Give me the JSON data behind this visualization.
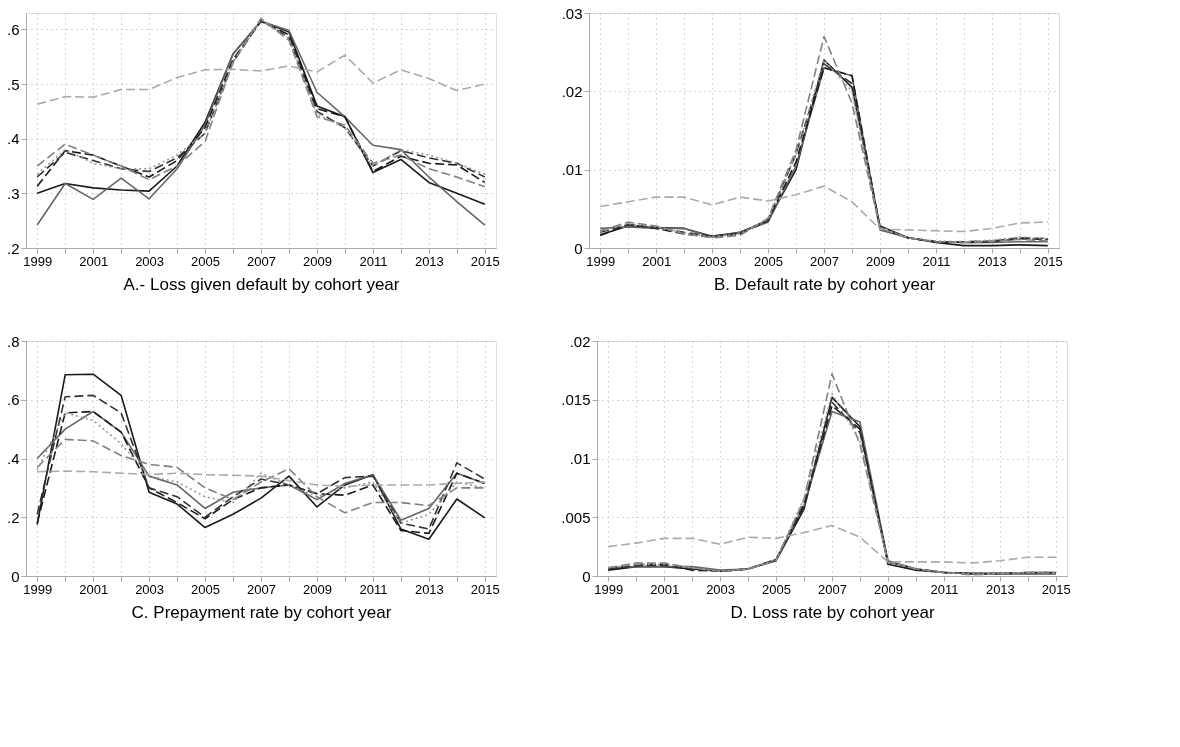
{
  "chart_data": [
    {
      "type": "line",
      "xlabel": "A.- Loss given default by cohort year",
      "x": [
        1999,
        2000,
        2001,
        2002,
        2003,
        2004,
        2005,
        2006,
        2007,
        2008,
        2009,
        2010,
        2011,
        2012,
        2013,
        2014,
        2015
      ],
      "xlim": [
        1998.6,
        2015.4
      ],
      "xticks": [
        1999,
        {
          "value": 2000,
          "label": null
        },
        2001,
        {
          "value": 2002,
          "label": null
        },
        2003,
        {
          "value": 2004,
          "label": null
        },
        2005,
        {
          "value": 2006,
          "label": null
        },
        2007,
        {
          "value": 2008,
          "label": null
        },
        2009,
        {
          "value": 2010,
          "label": null
        },
        2011,
        {
          "value": 2012,
          "label": null
        },
        2013,
        {
          "value": 2014,
          "label": null
        },
        2015
      ],
      "ylim": [
        0.2,
        0.63
      ],
      "yticks": [
        {
          "value": 0.2,
          "label": ".2"
        },
        {
          "value": 0.3,
          "label": ".3"
        },
        {
          "value": 0.4,
          "label": ".4"
        },
        {
          "value": 0.5,
          "label": ".5"
        },
        {
          "value": 0.6,
          "label": ".6"
        }
      ],
      "grid": true,
      "legend": false,
      "marker": "none",
      "series": [
        {
          "color": "#1a1a1a",
          "line_style": "solid",
          "values": [
            0.3,
            0.318,
            0.31,
            0.306,
            0.304,
            0.35,
            0.43,
            0.555,
            0.615,
            0.595,
            0.46,
            0.44,
            0.338,
            0.362,
            0.32,
            0.3,
            0.28
          ]
        },
        {
          "color": "#666666",
          "line_style": "solid",
          "values": [
            0.242,
            0.318,
            0.289,
            0.328,
            0.29,
            0.345,
            0.425,
            0.555,
            0.615,
            0.598,
            0.485,
            0.44,
            0.388,
            0.38,
            0.33,
            0.285,
            0.242
          ]
        },
        {
          "color": "#1a1a1a",
          "line_style": "dashed",
          "values": [
            0.313,
            0.378,
            0.37,
            0.35,
            0.33,
            0.36,
            0.42,
            0.545,
            0.615,
            0.59,
            0.455,
            0.44,
            0.34,
            0.368,
            0.355,
            0.352,
            0.32
          ]
        },
        {
          "color": "#333333",
          "line_style": "dashed",
          "values": [
            0.33,
            0.375,
            0.36,
            0.345,
            0.34,
            0.365,
            0.41,
            0.54,
            0.617,
            0.585,
            0.45,
            0.42,
            0.35,
            0.378,
            0.365,
            0.355,
            0.33
          ]
        },
        {
          "color": "#808080",
          "line_style": "dashed",
          "values": [
            0.35,
            0.39,
            0.37,
            0.35,
            0.325,
            0.35,
            0.395,
            0.54,
            0.62,
            0.58,
            0.44,
            0.425,
            0.355,
            0.37,
            0.345,
            0.33,
            0.312
          ]
        },
        {
          "color": "#999999",
          "line_style": "dotted",
          "values": [
            0.335,
            0.38,
            0.355,
            0.345,
            0.345,
            0.37,
            0.41,
            0.54,
            0.618,
            0.583,
            0.445,
            0.42,
            0.35,
            0.38,
            0.37,
            0.355,
            0.335
          ]
        },
        {
          "color": "#aaaaaa",
          "line_style": "dashed",
          "values": [
            0.463,
            0.477,
            0.476,
            0.49,
            0.49,
            0.512,
            0.526,
            0.527,
            0.524,
            0.533,
            0.522,
            0.553,
            0.502,
            0.526,
            0.51,
            0.488,
            0.5
          ]
        }
      ]
    },
    {
      "type": "line",
      "xlabel": "B. Default rate by cohort year",
      "x": [
        1999,
        2000,
        2001,
        2002,
        2003,
        2004,
        2005,
        2006,
        2007,
        2008,
        2009,
        2010,
        2011,
        2012,
        2013,
        2014,
        2015
      ],
      "xlim": [
        1998.6,
        2015.4
      ],
      "xticks": [
        1999,
        {
          "value": 2000,
          "label": null
        },
        2001,
        {
          "value": 2002,
          "label": null
        },
        2003,
        {
          "value": 2004,
          "label": null
        },
        2005,
        {
          "value": 2006,
          "label": null
        },
        2007,
        {
          "value": 2008,
          "label": null
        },
        2009,
        {
          "value": 2010,
          "label": null
        },
        2011,
        {
          "value": 2012,
          "label": null
        },
        2013,
        {
          "value": 2014,
          "label": null
        },
        2015
      ],
      "ylim": [
        0,
        0.03
      ],
      "yticks": [
        0,
        {
          "value": 0.01,
          "label": ".01"
        },
        {
          "value": 0.02,
          "label": ".02"
        },
        {
          "value": 0.03,
          "label": ".03"
        }
      ],
      "grid": true,
      "legend": false,
      "marker": "none",
      "series": [
        {
          "color": "#1a1a1a",
          "line_style": "solid",
          "values": [
            0.0017,
            0.0028,
            0.0026,
            0.0025,
            0.0015,
            0.002,
            0.0035,
            0.01,
            0.024,
            0.0205,
            0.0028,
            0.0013,
            0.0007,
            0.0003,
            0.0003,
            0.0004,
            0.0003
          ]
        },
        {
          "color": "#666666",
          "line_style": "solid",
          "values": [
            0.0025,
            0.0027,
            0.0025,
            0.0025,
            0.0014,
            0.002,
            0.0033,
            0.0105,
            0.023,
            0.022,
            0.0023,
            0.0013,
            0.0008,
            0.0007,
            0.0007,
            0.0008,
            0.0008
          ]
        },
        {
          "color": "#1a1a1a",
          "line_style": "dashed",
          "values": [
            0.0016,
            0.003,
            0.0025,
            0.0018,
            0.0014,
            0.0018,
            0.0035,
            0.011,
            0.023,
            0.022,
            0.0025,
            0.0013,
            0.0008,
            0.0007,
            0.0008,
            0.0012,
            0.0011
          ]
        },
        {
          "color": "#333333",
          "line_style": "dashed",
          "values": [
            0.002,
            0.003,
            0.0026,
            0.002,
            0.0015,
            0.0019,
            0.0036,
            0.012,
            0.0235,
            0.021,
            0.0027,
            0.0013,
            0.0008,
            0.0008,
            0.0009,
            0.0013,
            0.0012
          ]
        },
        {
          "color": "#808080",
          "line_style": "dashed",
          "values": [
            0.0022,
            0.0033,
            0.0028,
            0.0018,
            0.0013,
            0.0016,
            0.0038,
            0.0125,
            0.027,
            0.0185,
            0.0025,
            0.0013,
            0.0008,
            0.0007,
            0.0009,
            0.0011,
            0.0009
          ]
        },
        {
          "color": "#999999",
          "line_style": "dotted",
          "values": [
            0.0021,
            0.0031,
            0.0027,
            0.0019,
            0.0014,
            0.0018,
            0.0037,
            0.012,
            0.024,
            0.02,
            0.0026,
            0.0013,
            0.0009,
            0.0008,
            0.001,
            0.0014,
            0.0012
          ]
        },
        {
          "color": "#aaaaaa",
          "line_style": "dashed",
          "values": [
            0.0053,
            0.0059,
            0.0065,
            0.0065,
            0.0055,
            0.0065,
            0.006,
            0.0068,
            0.0079,
            0.0059,
            0.0024,
            0.0023,
            0.0022,
            0.0021,
            0.0025,
            0.0032,
            0.0033
          ]
        }
      ]
    },
    {
      "type": "line",
      "xlabel": "C. Prepayment rate by cohort year",
      "x": [
        1999,
        2000,
        2001,
        2002,
        2003,
        2004,
        2005,
        2006,
        2007,
        2008,
        2009,
        2010,
        2011,
        2012,
        2013,
        2014,
        2015
      ],
      "xlim": [
        1998.6,
        2015.4
      ],
      "xticks": [
        1999,
        {
          "value": 2000,
          "label": null
        },
        2001,
        {
          "value": 2002,
          "label": null
        },
        2003,
        {
          "value": 2004,
          "label": null
        },
        2005,
        {
          "value": 2006,
          "label": null
        },
        2007,
        {
          "value": 2008,
          "label": null
        },
        2009,
        {
          "value": 2010,
          "label": null
        },
        2011,
        {
          "value": 2012,
          "label": null
        },
        2013,
        {
          "value": 2014,
          "label": null
        },
        2015
      ],
      "ylim": [
        0,
        0.8
      ],
      "yticks": [
        0,
        {
          "value": 0.2,
          "label": ".2"
        },
        {
          "value": 0.4,
          "label": ".4"
        },
        {
          "value": 0.6,
          "label": ".6"
        },
        {
          "value": 0.8,
          "label": ".8"
        }
      ],
      "grid": true,
      "legend": false,
      "marker": "none",
      "series": [
        {
          "color": "#1a1a1a",
          "line_style": "solid",
          "values": [
            0.175,
            0.685,
            0.687,
            0.615,
            0.285,
            0.245,
            0.165,
            0.21,
            0.265,
            0.34,
            0.235,
            0.31,
            0.345,
            0.16,
            0.125,
            0.262,
            0.198
          ]
        },
        {
          "color": "#666666",
          "line_style": "solid",
          "values": [
            0.4,
            0.5,
            0.56,
            0.49,
            0.34,
            0.31,
            0.23,
            0.285,
            0.3,
            0.31,
            0.26,
            0.315,
            0.345,
            0.19,
            0.23,
            0.35,
            0.315
          ]
        },
        {
          "color": "#1a1a1a",
          "line_style": "dashed",
          "values": [
            0.18,
            0.555,
            0.56,
            0.49,
            0.3,
            0.25,
            0.195,
            0.26,
            0.3,
            0.31,
            0.28,
            0.275,
            0.31,
            0.155,
            0.145,
            0.35,
            0.315
          ]
        },
        {
          "color": "#333333",
          "line_style": "dashed",
          "values": [
            0.21,
            0.61,
            0.615,
            0.555,
            0.3,
            0.27,
            0.2,
            0.27,
            0.33,
            0.31,
            0.28,
            0.335,
            0.34,
            0.18,
            0.16,
            0.385,
            0.33
          ]
        },
        {
          "color": "#808080",
          "line_style": "dashed",
          "values": [
            0.37,
            0.465,
            0.46,
            0.41,
            0.38,
            0.37,
            0.3,
            0.26,
            0.32,
            0.365,
            0.27,
            0.215,
            0.25,
            0.25,
            0.24,
            0.3,
            0.3
          ]
        },
        {
          "color": "#999999",
          "line_style": "dotted",
          "values": [
            0.36,
            0.555,
            0.53,
            0.45,
            0.34,
            0.32,
            0.27,
            0.25,
            0.35,
            0.31,
            0.27,
            0.3,
            0.32,
            0.18,
            0.21,
            0.32,
            0.3
          ]
        },
        {
          "color": "#aaaaaa",
          "line_style": "dashed",
          "values": [
            0.355,
            0.357,
            0.355,
            0.35,
            0.345,
            0.35,
            0.345,
            0.343,
            0.34,
            0.325,
            0.31,
            0.305,
            0.31,
            0.31,
            0.31,
            0.315,
            0.32
          ]
        }
      ]
    },
    {
      "type": "line",
      "xlabel": "D. Loss rate by cohort year",
      "x": [
        1999,
        2000,
        2001,
        2002,
        2003,
        2004,
        2005,
        2006,
        2007,
        2008,
        2009,
        2010,
        2011,
        2012,
        2013,
        2014,
        2015
      ],
      "xlim": [
        1998.6,
        2015.4
      ],
      "xticks": [
        1999,
        {
          "value": 2000,
          "label": null
        },
        2001,
        {
          "value": 2002,
          "label": null
        },
        2003,
        {
          "value": 2004,
          "label": null
        },
        2005,
        {
          "value": 2006,
          "label": null
        },
        2007,
        {
          "value": 2008,
          "label": null
        },
        2009,
        {
          "value": 2010,
          "label": null
        },
        2011,
        {
          "value": 2012,
          "label": null
        },
        2013,
        {
          "value": 2014,
          "label": null
        },
        2015
      ],
      "ylim": [
        0,
        0.02
      ],
      "yticks": [
        0,
        {
          "value": 0.005,
          "label": ".005"
        },
        {
          "value": 0.01,
          "label": ".01"
        },
        {
          "value": 0.015,
          "label": ".015"
        },
        {
          "value": 0.02,
          "label": ".02"
        }
      ],
      "grid": true,
      "legend": false,
      "marker": "none",
      "series": [
        {
          "color": "#1a1a1a",
          "line_style": "solid",
          "values": [
            0.0005,
            0.0008,
            0.0008,
            0.0006,
            0.0004,
            0.0006,
            0.0013,
            0.0057,
            0.0152,
            0.0127,
            0.001,
            0.0005,
            0.0003,
            0.0002,
            0.0002,
            0.0002,
            0.0002
          ]
        },
        {
          "color": "#666666",
          "line_style": "solid",
          "values": [
            0.0007,
            0.0008,
            0.0008,
            0.0008,
            0.0005,
            0.0006,
            0.0014,
            0.006,
            0.014,
            0.0131,
            0.0013,
            0.0006,
            0.0003,
            0.0002,
            0.0002,
            0.0002,
            0.0002
          ]
        },
        {
          "color": "#1a1a1a",
          "line_style": "dashed",
          "values": [
            0.0006,
            0.0009,
            0.001,
            0.0005,
            0.0004,
            0.0006,
            0.0014,
            0.006,
            0.0145,
            0.0125,
            0.0012,
            0.0006,
            0.0003,
            0.0002,
            0.0002,
            0.0003,
            0.0003
          ]
        },
        {
          "color": "#333333",
          "line_style": "dashed",
          "values": [
            0.0006,
            0.0009,
            0.0009,
            0.0006,
            0.0004,
            0.0006,
            0.0014,
            0.0062,
            0.0148,
            0.0122,
            0.0012,
            0.0006,
            0.0003,
            0.0002,
            0.0002,
            0.0003,
            0.0003
          ]
        },
        {
          "color": "#808080",
          "line_style": "dashed",
          "values": [
            0.0007,
            0.0011,
            0.0011,
            0.0007,
            0.0004,
            0.0006,
            0.0013,
            0.0065,
            0.0172,
            0.0112,
            0.0012,
            0.0006,
            0.0003,
            0.0001,
            0.0002,
            0.0003,
            0.0002
          ]
        },
        {
          "color": "#999999",
          "line_style": "dotted",
          "values": [
            0.0007,
            0.001,
            0.001,
            0.0007,
            0.0004,
            0.0006,
            0.0014,
            0.0066,
            0.0155,
            0.0115,
            0.0012,
            0.0006,
            0.0003,
            0.0002,
            0.0002,
            0.0003,
            0.0003
          ]
        },
        {
          "color": "#aaaaaa",
          "line_style": "dashed",
          "values": [
            0.0025,
            0.0028,
            0.0032,
            0.0032,
            0.0027,
            0.0033,
            0.0032,
            0.0037,
            0.0043,
            0.0033,
            0.0012,
            0.0012,
            0.0012,
            0.0011,
            0.0013,
            0.0016,
            0.0016
          ]
        }
      ]
    }
  ]
}
